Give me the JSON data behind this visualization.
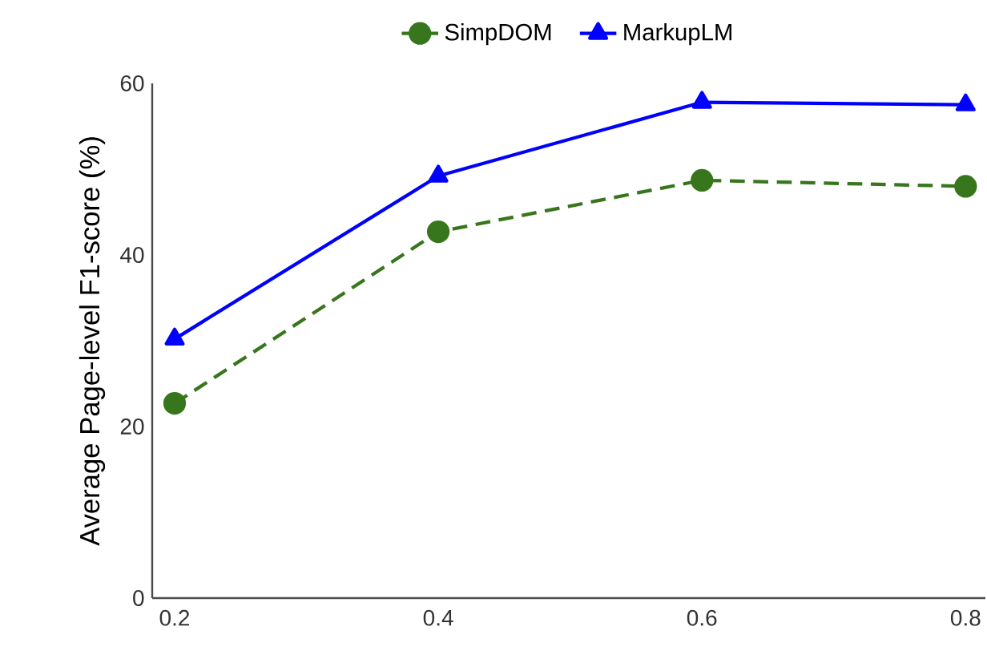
{
  "chart_data": {
    "type": "line",
    "ylabel": "Average Page-level F1-score (%)",
    "x": [
      0.2,
      0.4,
      0.6,
      0.8
    ],
    "series": [
      {
        "name": "SimpDOM",
        "color": "#38761d",
        "values": [
          22.7,
          42.7,
          48.7,
          48.0
        ],
        "marker": "circle",
        "line_style": "dashed"
      },
      {
        "name": "MarkupLM",
        "color": "#0000ff",
        "values": [
          30.2,
          49.2,
          57.8,
          57.5
        ],
        "marker": "triangle",
        "line_style": "solid"
      }
    ],
    "xlim": [
      0.183,
      0.815
    ],
    "ylim": [
      0,
      60
    ],
    "xticks": [
      0.2,
      0.4,
      0.6,
      0.8
    ],
    "yticks": [
      0,
      20,
      40,
      60
    ],
    "grid": false,
    "legend": "top"
  }
}
